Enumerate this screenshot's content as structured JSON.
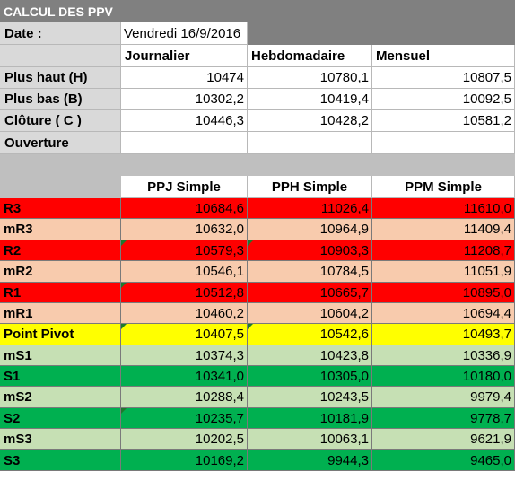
{
  "title": "CALCUL DES PPV",
  "date_label": "Date :",
  "date_value": "Vendredi 16/9/2016",
  "periods": [
    "Journalier",
    "Hebdomadaire",
    "Mensuel"
  ],
  "inputs": [
    {
      "label": "Plus haut (H)",
      "values": [
        "10474",
        "10780,1",
        "10807,5"
      ]
    },
    {
      "label": "Plus bas (B)",
      "values": [
        "10302,2",
        "10419,4",
        "10092,5"
      ]
    },
    {
      "label": "Clôture ( C )",
      "values": [
        "10446,3",
        "10428,2",
        "10581,2"
      ]
    },
    {
      "label": "Ouverture",
      "values": [
        "",
        "",
        ""
      ]
    }
  ],
  "pivot_headers": [
    "PPJ Simple",
    "PPH Simple",
    "PPM Simple"
  ],
  "pivot_rows": [
    {
      "label": "R3",
      "values": [
        "10684,6",
        "11026,4",
        "11610,0"
      ]
    },
    {
      "label": "mR3",
      "values": [
        "10632,0",
        "10964,9",
        "11409,4"
      ]
    },
    {
      "label": "R2",
      "values": [
        "10579,3",
        "10903,3",
        "11208,7"
      ]
    },
    {
      "label": "mR2",
      "values": [
        "10546,1",
        "10784,5",
        "11051,9"
      ]
    },
    {
      "label": "R1",
      "values": [
        "10512,8",
        "10665,7",
        "10895,0"
      ]
    },
    {
      "label": "mR1",
      "values": [
        "10460,2",
        "10604,2",
        "10694,4"
      ]
    },
    {
      "label": "Point Pivot",
      "values": [
        "10407,5",
        "10542,6",
        "10493,7"
      ]
    },
    {
      "label": "mS1",
      "values": [
        "10374,3",
        "10423,8",
        "10336,9"
      ]
    },
    {
      "label": "S1",
      "values": [
        "10341,0",
        "10305,0",
        "10180,0"
      ]
    },
    {
      "label": "mS2",
      "values": [
        "10288,4",
        "10243,5",
        "9979,4"
      ]
    },
    {
      "label": "S2",
      "values": [
        "10235,7",
        "10181,9",
        "9778,7"
      ]
    },
    {
      "label": "mS3",
      "values": [
        "10202,5",
        "10063,1",
        "9621,9"
      ]
    },
    {
      "label": "S3",
      "values": [
        "10169,2",
        "9944,3",
        "9465,0"
      ]
    }
  ],
  "colors": {
    "title_bg": "#808080",
    "label_bg": "#d9d9d9",
    "separator_bg": "#bfbfbf",
    "red": "#ff0000",
    "salmon": "#f8cbad",
    "yellow": "#ffff00",
    "light_green": "#c6e0b4",
    "green": "#00b050",
    "comment_marker": "#1e7a2e"
  }
}
